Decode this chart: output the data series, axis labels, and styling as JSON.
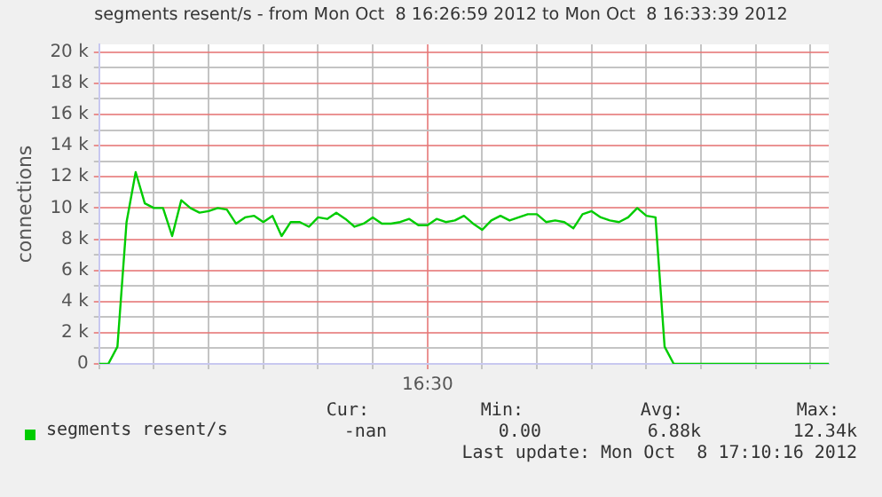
{
  "chart_data": {
    "type": "line",
    "title": "segments resent/s - from Mon Oct  8 16:26:59 2012 to Mon Oct  8 16:33:39 2012",
    "ylabel": "connections",
    "categories": [
      null,
      null,
      null,
      null,
      null,
      null,
      null,
      null,
      null,
      null,
      null,
      null,
      null,
      null,
      null,
      null,
      null,
      null,
      null,
      null,
      null,
      null,
      null,
      null,
      null,
      null,
      null,
      null,
      null,
      null,
      null,
      null,
      null,
      null,
      null,
      null,
      "16:30",
      null,
      null,
      null,
      null,
      null,
      null,
      null,
      null,
      null,
      null,
      null,
      null,
      null,
      null,
      null,
      null,
      null,
      null,
      null,
      null,
      null,
      null,
      null,
      null,
      null,
      null,
      null,
      null,
      null,
      null,
      null,
      null,
      null,
      null,
      null,
      null,
      null,
      null,
      null,
      null,
      null,
      null,
      null,
      null
    ],
    "series": [
      {
        "name": "segments resent/s",
        "color": "#00cc00",
        "values": [
          0,
          0,
          1100,
          9100,
          12300,
          10300,
          10000,
          10000,
          8200,
          10500,
          10000,
          9700,
          9800,
          10000,
          9900,
          9000,
          9400,
          9500,
          9100,
          9500,
          8200,
          9100,
          9100,
          8800,
          9400,
          9300,
          9700,
          9300,
          8800,
          9000,
          9400,
          9000,
          9000,
          9100,
          9300,
          8900,
          8900,
          9300,
          9100,
          9200,
          9500,
          9000,
          8600,
          9200,
          9500,
          9200,
          9400,
          9600,
          9600,
          9100,
          9200,
          9100,
          8700,
          9600,
          9800,
          9400,
          9200,
          9100,
          9400,
          10000,
          9500,
          9400,
          1100,
          0,
          0,
          0,
          0,
          0,
          0,
          0,
          0,
          0,
          0,
          0,
          0,
          0,
          0,
          0,
          0,
          0,
          0
        ]
      }
    ],
    "ylim": [
      0,
      20500
    ],
    "yticks": [
      {
        "value": 0,
        "label": "0"
      },
      {
        "value": 1000,
        "label": null
      },
      {
        "value": 2000,
        "label": "2 k"
      },
      {
        "value": 3000,
        "label": null
      },
      {
        "value": 4000,
        "label": "4 k"
      },
      {
        "value": 5000,
        "label": null
      },
      {
        "value": 6000,
        "label": "6 k"
      },
      {
        "value": 7000,
        "label": null
      },
      {
        "value": 8000,
        "label": "8 k"
      },
      {
        "value": 9000,
        "label": null
      },
      {
        "value": 10000,
        "label": "10 k"
      },
      {
        "value": 11000,
        "label": null
      },
      {
        "value": 12000,
        "label": "12 k"
      },
      {
        "value": 13000,
        "label": null
      },
      {
        "value": 14000,
        "label": "14 k"
      },
      {
        "value": 15000,
        "label": null
      },
      {
        "value": 16000,
        "label": "16 k"
      },
      {
        "value": 17000,
        "label": null
      },
      {
        "value": 18000,
        "label": "18 k"
      },
      {
        "value": 19000,
        "label": null
      },
      {
        "value": 20000,
        "label": "20 k"
      }
    ],
    "grid": true,
    "legend": "bottom left",
    "marker": "none",
    "line_style": "solid",
    "annotations": [
      "Cur:",
      "-nan",
      "Min:",
      "0.00",
      "Avg:",
      "6.88k",
      "Max:",
      "12.34k",
      "Last update: Mon Oct  8 17:10:16 2012"
    ]
  }
}
